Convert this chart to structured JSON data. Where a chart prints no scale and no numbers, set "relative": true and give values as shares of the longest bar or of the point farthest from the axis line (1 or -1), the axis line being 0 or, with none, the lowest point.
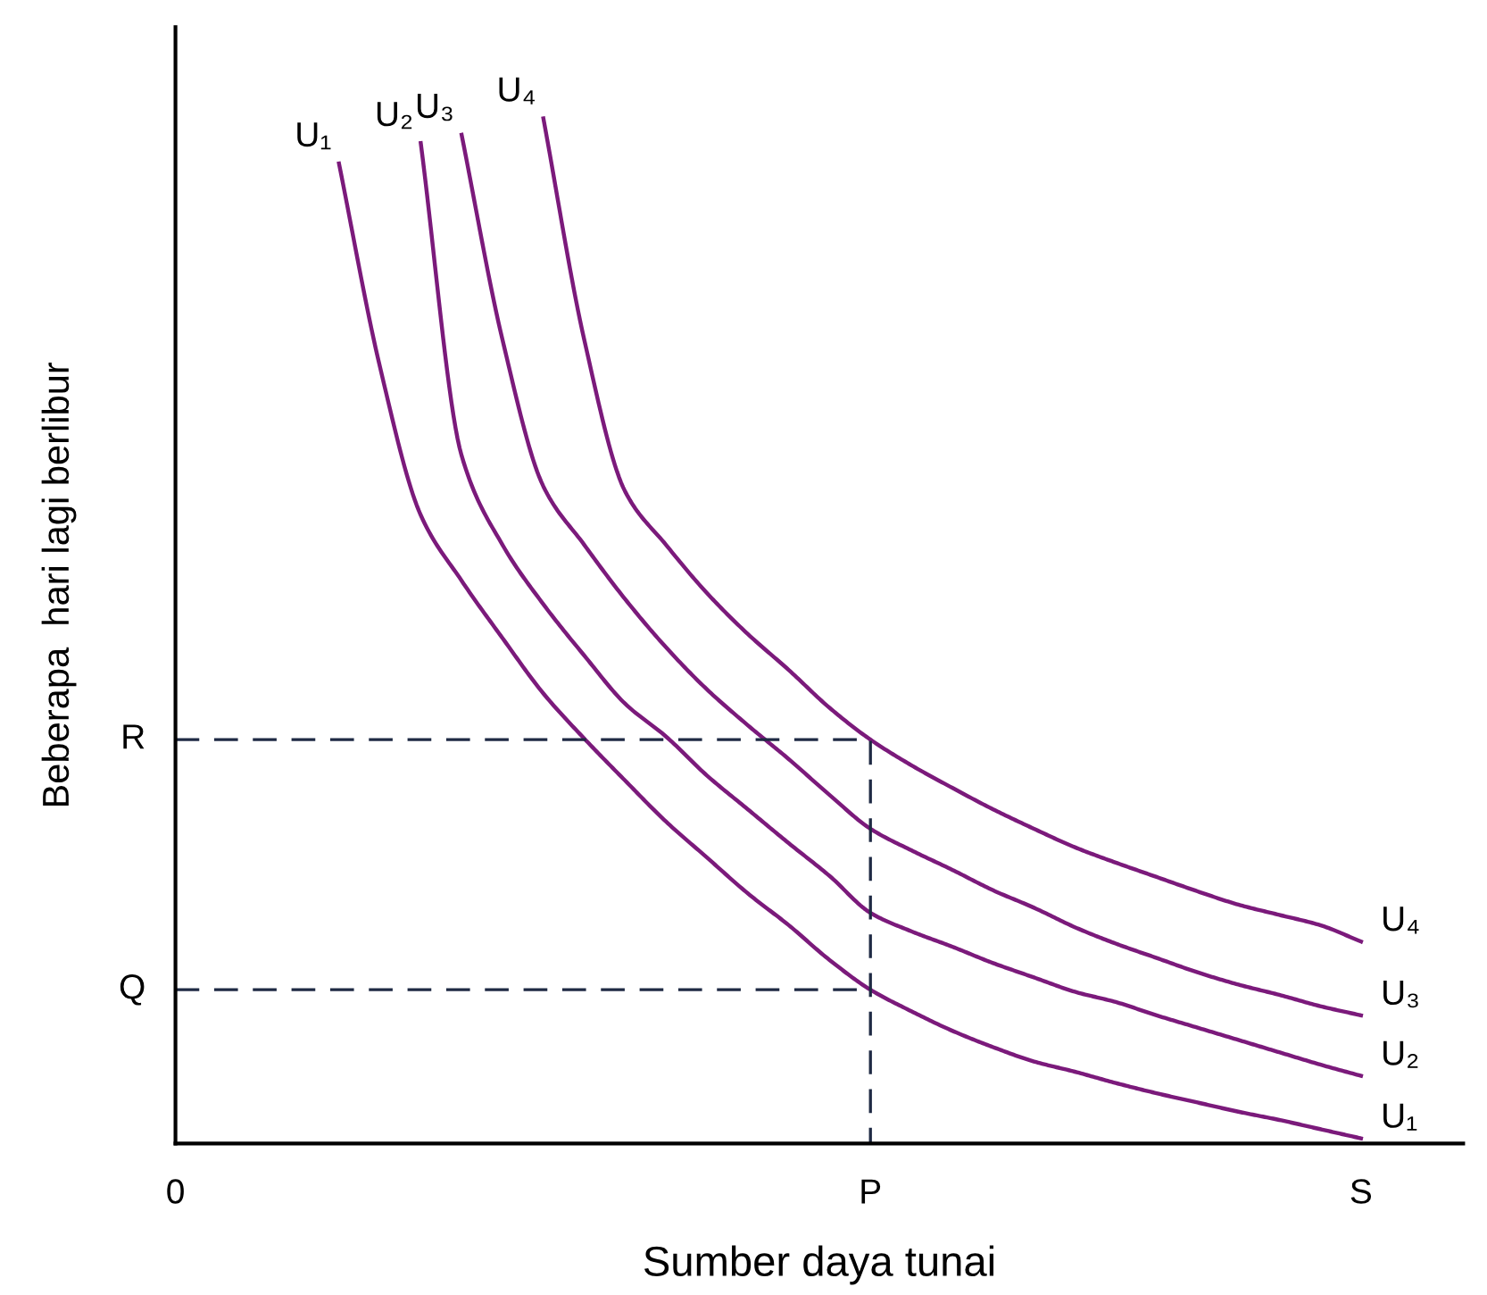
{
  "chart_data": {
    "type": "line",
    "relative": true,
    "xlabel": "Sumber daya tunai",
    "ylabel": "Beberapa  hari lagi berlibur",
    "categories": [
      "0",
      null,
      null,
      null,
      null,
      null,
      null,
      null,
      null,
      null,
      null,
      null,
      null,
      null,
      null,
      null,
      null,
      "P",
      null,
      null,
      null,
      null,
      null,
      null,
      null,
      null,
      null,
      null,
      null,
      "S",
      null,
      null
    ],
    "grid": false,
    "legend": false,
    "marker": "none",
    "line_style": "solid",
    "series": [
      {
        "name": "U₁",
        "color": "#7b1a7b",
        "values": [
          null,
          null,
          null,
          null,
          0.956,
          0.758,
          0.613,
          0.549,
          0.493,
          0.439,
          0.395,
          0.354,
          0.314,
          0.279,
          0.244,
          0.213,
          0.179,
          0.15,
          0.129,
          0.11,
          0.094,
          0.08,
          0.07,
          0.059,
          0.049,
          0.04,
          0.031,
          0.023,
          0.014,
          0.005,
          null,
          null
        ]
      },
      {
        "name": "U₂",
        "color": "#7b1a7b",
        "values": [
          null,
          null,
          null,
          null,
          null,
          null,
          0.976,
          0.671,
          0.584,
          0.526,
          0.476,
          0.429,
          0.397,
          0.359,
          0.326,
          0.293,
          0.261,
          0.225,
          0.207,
          0.192,
          0.176,
          0.162,
          0.148,
          0.138,
          0.125,
          0.113,
          0.101,
          0.089,
          0.077,
          0.066,
          null,
          null
        ]
      },
      {
        "name": "U₃",
        "color": "#7b1a7b",
        "values": [
          null,
          null,
          null,
          null,
          null,
          null,
          null,
          0.984,
          0.784,
          0.641,
          0.584,
          0.531,
          0.484,
          0.443,
          0.408,
          0.375,
          0.34,
          0.307,
          0.286,
          0.267,
          0.247,
          0.23,
          0.211,
          0.195,
          0.181,
          0.167,
          0.155,
          0.145,
          0.134,
          0.125,
          null,
          null
        ]
      },
      {
        "name": "U₄",
        "color": "#7b1a7b",
        "values": [
          null,
          null,
          null,
          null,
          null,
          null,
          null,
          null,
          null,
          1,
          0.784,
          0.636,
          0.584,
          0.537,
          0.497,
          0.462,
          0.425,
          0.394,
          0.369,
          0.347,
          0.326,
          0.307,
          0.289,
          0.274,
          0.26,
          0.246,
          0.233,
          0.223,
          0.213,
          0.197,
          null,
          null
        ]
      },
      {
        "color": "#1f2a44",
        "line_style": "dashed",
        "x": [
          "0",
          "P",
          "P"
        ],
        "values": [
          0.394,
          0.394,
          0
        ]
      },
      {
        "color": "#1f2a44",
        "line_style": "dashed",
        "x": [
          "0",
          "P"
        ],
        "values": [
          0.15,
          0.15
        ]
      }
    ],
    "annotations": [
      {
        "text": "R",
        "x": "0",
        "y": 0.394
      },
      {
        "text": "Q",
        "x": "0",
        "y": 0.15
      }
    ]
  }
}
